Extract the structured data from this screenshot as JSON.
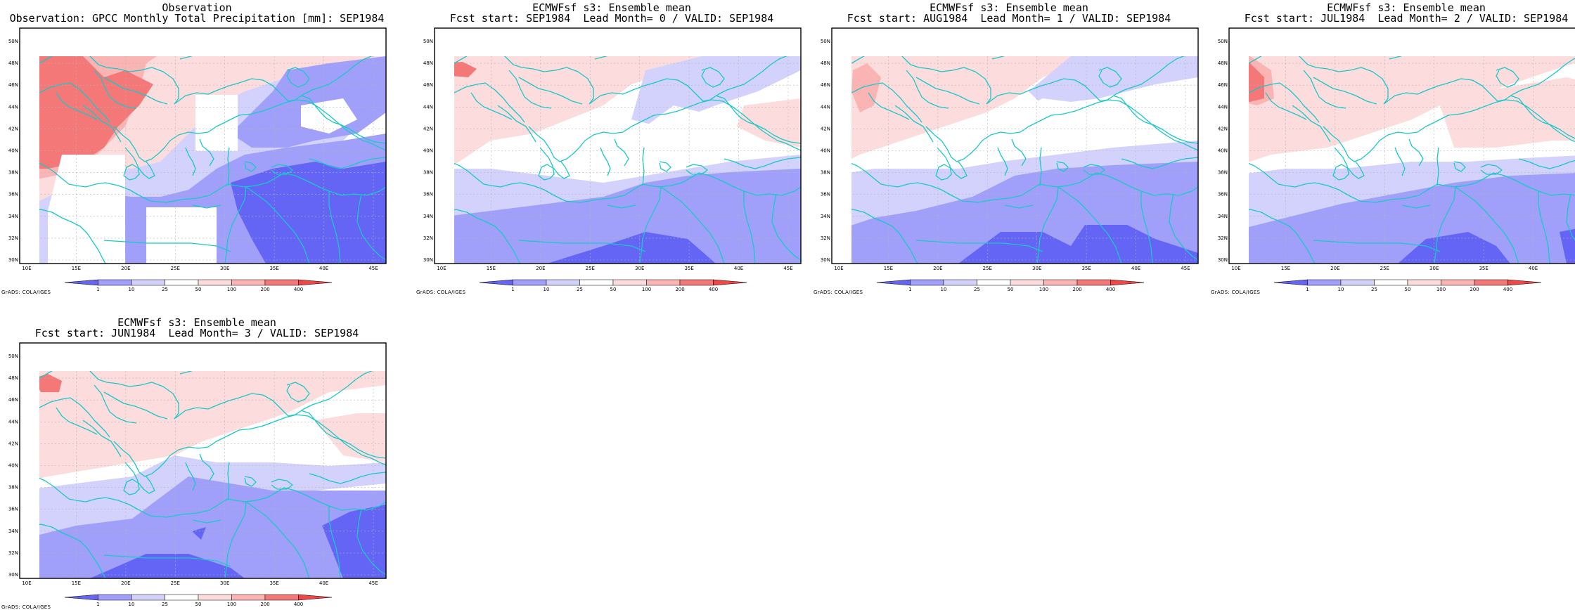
{
  "panels": [
    {
      "title_line1": "Observation",
      "title_line2": "Observation: GPCC Monthly Total Precipitation [mm]: SEP1984",
      "kind": "obs"
    },
    {
      "title_line1": "ECMWFsf s3: Ensemble mean",
      "title_line2": "Fcst start: SEP1984  Lead Month= 0 / VALID: SEP1984",
      "kind": "lead0"
    },
    {
      "title_line1": "ECMWFsf s3: Ensemble mean",
      "title_line2": "Fcst start: AUG1984  Lead Month= 1 / VALID: SEP1984",
      "kind": "lead1"
    },
    {
      "title_line1": "ECMWFsf s3: Ensemble mean",
      "title_line2": "Fcst start: JUL1984  Lead Month= 2 / VALID: SEP1984",
      "kind": "lead2"
    },
    {
      "title_line1": "ECMWFsf s3: Ensemble mean",
      "title_line2": "Fcst start: JUN1984  Lead Month= 3 / VALID: SEP1984",
      "kind": "lead3"
    }
  ],
  "map": {
    "lon_ticks": [
      "10E",
      "15E",
      "20E",
      "25E",
      "30E",
      "35E",
      "40E",
      "45E"
    ],
    "lat_ticks": [
      "30N",
      "32N",
      "34N",
      "36N",
      "38N",
      "40N",
      "42N",
      "44N",
      "46N",
      "48N",
      "50N"
    ],
    "grid": true
  },
  "colorbar": {
    "labels": [
      "1",
      "10",
      "25",
      "50",
      "100",
      "200",
      "400"
    ],
    "colors": [
      "#6464f5",
      "#a0a0fa",
      "#d2d2fc",
      "#ffffff",
      "#fcdcdc",
      "#fab4b4",
      "#f57878",
      "#f04646"
    ]
  },
  "credit": "GrADS: COLA/IGES",
  "colors": {
    "coast": "#19c8c8",
    "frame": "#000000",
    "grid": "#b4b4b4"
  }
}
